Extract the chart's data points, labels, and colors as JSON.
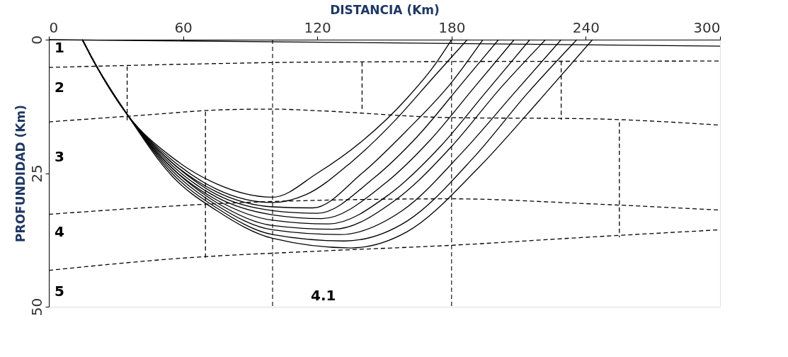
{
  "chart_data": {
    "type": "line",
    "xlabel": "DISTANCIA (Km)",
    "ylabel": "PROFUNDIDAD (Km)",
    "xlim": [
      0,
      300
    ],
    "xticks": [
      0,
      60,
      120,
      180,
      240,
      300
    ],
    "ylim": [
      50,
      0
    ],
    "yticks": [
      0,
      25,
      50
    ],
    "grid": false,
    "marker": "none",
    "series": [
      {
        "color": "#000000",
        "line_style": "solid",
        "x": [
          0,
          300
        ],
        "values": [
          0,
          1.2
        ]
      },
      {
        "color": "#000000",
        "line_style": "dashed",
        "x": [
          0,
          60,
          120,
          300
        ],
        "values": [
          5.2,
          4.6,
          4.2,
          4.0
        ]
      },
      {
        "color": "#000000",
        "line_style": "dashed",
        "x": [
          0,
          40,
          80,
          100,
          120,
          180,
          240,
          300
        ],
        "values": [
          15.4,
          14.2,
          13.1,
          13,
          13.3,
          14.6,
          14.8,
          16
        ]
      },
      {
        "color": "#000000",
        "line_style": "dashed",
        "x": [
          0,
          100,
          180,
          240,
          300
        ],
        "values": [
          32.7,
          30.3,
          29.8,
          30.7,
          31.9
        ]
      },
      {
        "color": "#000000",
        "line_style": "dashed",
        "x": [
          0,
          60,
          120,
          180,
          240,
          300
        ],
        "values": [
          43.2,
          40.9,
          39.6,
          38.5,
          37,
          35.6
        ]
      },
      {
        "color": "#000000",
        "line_style": "dashed",
        "x": [
          35,
          35
        ],
        "values": [
          5,
          15.2
        ]
      },
      {
        "color": "#000000",
        "line_style": "dashed",
        "x": [
          70,
          70
        ],
        "values": [
          13.5,
          41
        ]
      },
      {
        "color": "#000000",
        "line_style": "dashed",
        "x": [
          140,
          140
        ],
        "values": [
          4.2,
          13.3
        ]
      },
      {
        "color": "#000000",
        "line_style": "dashed",
        "x": [
          229,
          229
        ],
        "values": [
          4,
          15
        ]
      },
      {
        "color": "#000000",
        "line_style": "dashed",
        "x": [
          255,
          255
        ],
        "values": [
          15.5,
          37
        ]
      },
      {
        "color": "#000000",
        "line_style": "solid",
        "x": [
          15,
          20,
          35,
          55,
          75,
          100,
          120,
          140,
          160,
          172,
          180
        ],
        "values": [
          0,
          4,
          14,
          22,
          27,
          29.5,
          25,
          19,
          11,
          5,
          0
        ]
      },
      {
        "color": "#000000",
        "line_style": "solid",
        "x": [
          15,
          20,
          35,
          55,
          75,
          100,
          115,
          135,
          155,
          172,
          187
        ],
        "values": [
          0,
          4,
          14,
          22.5,
          28,
          30.5,
          29,
          23,
          15,
          7,
          0
        ]
      },
      {
        "color": "#000000",
        "line_style": "solid",
        "x": [
          15,
          20,
          35,
          55,
          75,
          100,
          118,
          140,
          160,
          180,
          194
        ],
        "values": [
          0,
          4,
          14,
          23,
          28.5,
          31.3,
          31.5,
          25,
          17,
          8,
          0
        ]
      },
      {
        "color": "#000000",
        "line_style": "solid",
        "x": [
          15,
          20,
          35,
          55,
          75,
          100,
          120,
          145,
          165,
          185,
          201
        ],
        "values": [
          0,
          4,
          14,
          23,
          29,
          32,
          32.5,
          26,
          18,
          8,
          0
        ]
      },
      {
        "color": "#000000",
        "line_style": "solid",
        "x": [
          15,
          20,
          35,
          55,
          75,
          100,
          122,
          150,
          170,
          190,
          208
        ],
        "values": [
          0,
          4,
          14,
          23.5,
          29.5,
          32.8,
          33.5,
          27,
          19,
          9,
          0
        ]
      },
      {
        "color": "#000000",
        "line_style": "solid",
        "x": [
          15,
          20,
          35,
          55,
          75,
          100,
          125,
          152,
          175,
          195,
          215
        ],
        "values": [
          0,
          4,
          14,
          24,
          30,
          33.8,
          34.5,
          29,
          20,
          10,
          0
        ]
      },
      {
        "color": "#000000",
        "line_style": "solid",
        "x": [
          15,
          20,
          35,
          55,
          75,
          100,
          127,
          155,
          180,
          202,
          222
        ],
        "values": [
          0,
          4,
          14,
          24,
          30.5,
          34.8,
          35.5,
          30,
          20,
          9,
          0
        ]
      },
      {
        "color": "#000000",
        "line_style": "solid",
        "x": [
          15,
          20,
          35,
          55,
          75,
          100,
          130,
          158,
          185,
          208,
          229
        ],
        "values": [
          0,
          4,
          14,
          24.5,
          31,
          35.6,
          36.5,
          32,
          21,
          10,
          0
        ]
      },
      {
        "color": "#000000",
        "line_style": "solid",
        "x": [
          15,
          20,
          35,
          55,
          75,
          100,
          132,
          160,
          190,
          214,
          236
        ],
        "values": [
          0,
          4,
          14,
          25,
          31.5,
          36.5,
          37.7,
          34,
          22,
          10,
          0
        ]
      },
      {
        "color": "#000000",
        "line_style": "solid",
        "x": [
          15,
          20,
          35,
          55,
          75,
          100,
          135,
          160,
          192,
          220,
          243
        ],
        "values": [
          0,
          4,
          14,
          25.5,
          32,
          37.2,
          39,
          36,
          24,
          11,
          0
        ]
      }
    ],
    "ref_lines": [
      {
        "axis": "x",
        "value": 100,
        "color": "#000000",
        "line_style": "dashed"
      },
      {
        "axis": "x",
        "value": 180,
        "color": "#000000",
        "line_style": "dashed"
      }
    ],
    "annotations": [
      "1",
      "2",
      "3",
      "4",
      "5",
      "4.1"
    ]
  }
}
